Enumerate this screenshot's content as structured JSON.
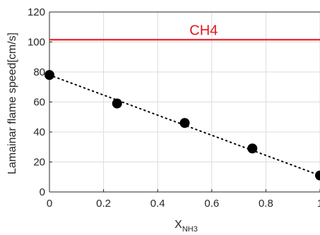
{
  "chart_data": {
    "type": "scatter",
    "xlabel": "X",
    "xlabel_subscript": "NH3",
    "ylabel": "Lamainar flame speed[cm/s]",
    "xlim": [
      0,
      1
    ],
    "ylim": [
      0,
      120
    ],
    "x_ticks": [
      "0",
      "0.2",
      "0.4",
      "0.6",
      "0.8",
      "1"
    ],
    "y_ticks": [
      "0",
      "20",
      "40",
      "60",
      "80",
      "100",
      "120"
    ],
    "grid": true,
    "series": [
      {
        "x": [
          0,
          0.25,
          0.5,
          0.75,
          1.0
        ],
        "y": [
          78,
          59,
          46,
          29,
          11
        ],
        "marker": "filled-circle",
        "color": "#000000"
      }
    ],
    "trend_line": {
      "x": [
        0,
        1
      ],
      "y": [
        78,
        11
      ],
      "style": "dotted",
      "color": "#000000"
    },
    "reference_lines": [
      {
        "y": 101.5,
        "label": "CH4",
        "color": "#e8141b"
      }
    ]
  }
}
